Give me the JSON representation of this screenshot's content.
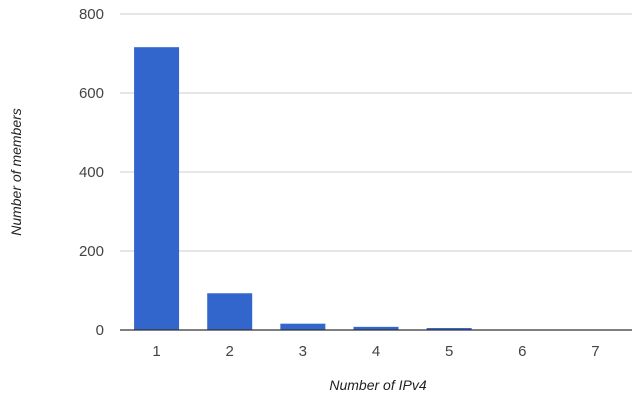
{
  "chart_data": {
    "type": "bar",
    "title": "",
    "xlabel": "Number of IPv4",
    "ylabel": "Number of members",
    "categories": [
      "1",
      "2",
      "3",
      "4",
      "5",
      "6",
      "7"
    ],
    "values": [
      716,
      93,
      16,
      8,
      5,
      1,
      1
    ],
    "ylim": [
      0,
      800
    ],
    "yticks": [
      "0",
      "200",
      "400",
      "600",
      "800"
    ],
    "grid": true,
    "legend": "none",
    "colors": {
      "bar": "#3366cc",
      "grid": "#cccccc",
      "baseline": "#333333"
    }
  }
}
